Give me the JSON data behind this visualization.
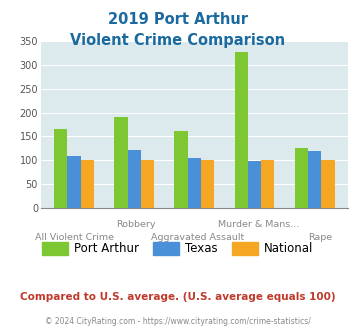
{
  "title_line1": "2019 Port Arthur",
  "title_line2": "Violent Crime Comparison",
  "x_labels_row1": [
    "",
    "Robbery",
    "",
    "Murder & Mans...",
    ""
  ],
  "x_labels_row2": [
    "All Violent Crime",
    "",
    "Aggravated Assault",
    "",
    "Rape"
  ],
  "port_arthur": [
    165,
    190,
    161,
    327,
    125
  ],
  "texas": [
    110,
    122,
    105,
    98,
    119
  ],
  "national": [
    100,
    100,
    100,
    100,
    100
  ],
  "color_port_arthur": "#7dc832",
  "color_texas": "#4a90d9",
  "color_national": "#f5a623",
  "ylim": [
    0,
    350
  ],
  "yticks": [
    0,
    50,
    100,
    150,
    200,
    250,
    300,
    350
  ],
  "plot_bg": "#dce9ed",
  "title_color": "#1a6aa0",
  "footer_text": "Compared to U.S. average. (U.S. average equals 100)",
  "footer_color": "#c0392b",
  "credit_text": "© 2024 CityRating.com - https://www.cityrating.com/crime-statistics/",
  "credit_color": "#888888",
  "legend_labels": [
    "Port Arthur",
    "Texas",
    "National"
  ]
}
